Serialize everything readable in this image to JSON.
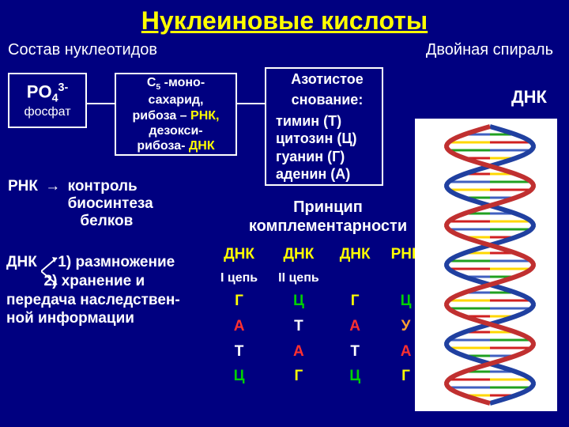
{
  "title": "Нуклеиновые кислоты",
  "subtitles": {
    "left": "Состав нуклеотидов",
    "right": "Двойная спираль"
  },
  "phosphate": {
    "formula_html": "PO₄³⁻",
    "label": "фосфат"
  },
  "sugar": {
    "line1": "С₅ -моно-",
    "line2": "сахарид,",
    "line3a": "рибоза – ",
    "line3b": "РНК,",
    "line4": "дезокси-",
    "line5a": "рибоза- ",
    "line5b": "ДНК"
  },
  "bases": {
    "header1": "Азотистое",
    "header2": "снование:",
    "items": [
      "тимин (Т)",
      "цитозин (Ц)",
      "гуанин (Г)",
      "аденин (А)"
    ]
  },
  "rnk": {
    "label": "РНК",
    "text1": "контроль",
    "text2": "биосинтеза",
    "text3": "белков"
  },
  "dnk": {
    "label": "ДНК",
    "line1": "1) размножение",
    "line2": "2) хранение и",
    "line3": "передача наследствен-",
    "line4": "ной информации"
  },
  "complementarity": {
    "title1": "Принцип",
    "title2": "комплементарности",
    "headers": {
      "dnk": "ДНК",
      "rnk": "РНК",
      "chain1": "I цепь",
      "chain2": "II цепь"
    },
    "rows": [
      [
        "Г",
        "Ц",
        "Г",
        "Ц"
      ],
      [
        "А",
        "Т",
        "А",
        "У"
      ],
      [
        "Т",
        "А",
        "Т",
        "А"
      ],
      [
        "Ц",
        "Г",
        "Ц",
        "Г"
      ]
    ],
    "base_colors": {
      "Г": "#FFFF00",
      "Ц": "#00D000",
      "А": "#FF3030",
      "Т": "#FFFFFF",
      "У": "#FFA030"
    }
  },
  "dna_image_label": "ДНК",
  "helix": {
    "backbone_colors": [
      "#2040A0",
      "#C03030"
    ],
    "rung_colors": [
      "#FFD700",
      "#20A020",
      "#D02020",
      "#4060C0"
    ],
    "background": "#FFFFFF",
    "strand_width": 6,
    "rung_width": 3,
    "turns": 3.5,
    "rungs_per_turn": 10
  },
  "colors": {
    "page_bg": "#000080",
    "title": "#FFFF00",
    "text": "#FFFFFF",
    "accent_yellow": "#FFFF00"
  }
}
